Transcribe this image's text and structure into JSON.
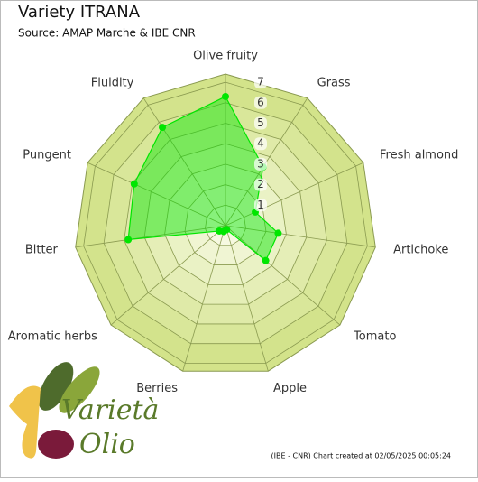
{
  "chart_data": {
    "type": "radar",
    "title": "Variety ITRANA",
    "subtitle": "Source: AMAP Marche & IBE CNR",
    "categories": [
      "Olive fruity",
      "Grass",
      "Fresh almond",
      "Artichoke",
      "Tomato",
      "Apple",
      "Berries",
      "Aromatic herbs",
      "Bitter",
      "Pungent",
      "Fluidity"
    ],
    "series": [
      {
        "name": "ITRANA",
        "color": "#00e600",
        "values": [
          6.3,
          3.4,
          1.6,
          2.6,
          2.6,
          0.2,
          0.3,
          0.4,
          4.8,
          4.9,
          5.7
        ]
      }
    ],
    "ylim": [
      0,
      7.4
    ],
    "yticks": [
      1,
      2,
      3,
      4,
      5,
      6,
      7
    ],
    "footnote": "(IBE - CNR) Chart created at 02/05/2025 00:05:24",
    "logo": {
      "line1": "Varietà",
      "line2": "Olio"
    }
  }
}
